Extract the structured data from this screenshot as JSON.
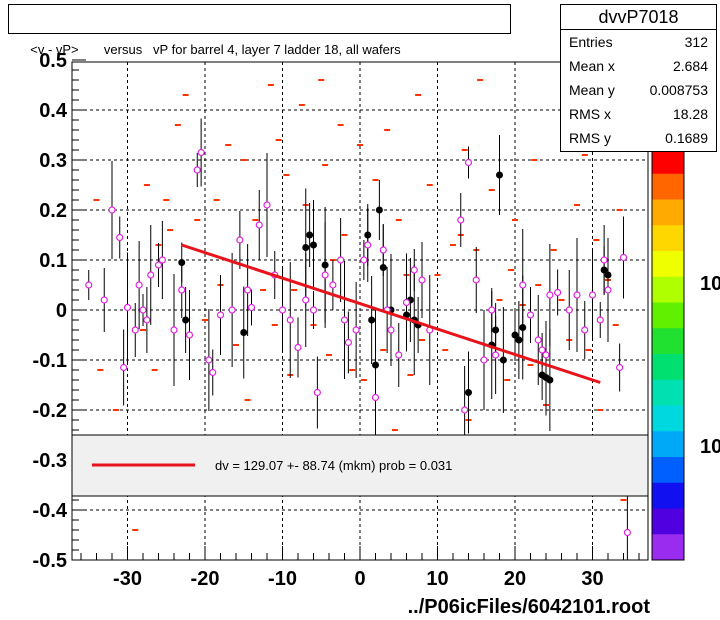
{
  "title": "<v - vP>       versus   vP for barrel 4, layer 7 ladder 18, all wafers",
  "stats": {
    "name": "dvvP7018",
    "rows": [
      {
        "key": "Entries",
        "value": "312"
      },
      {
        "key": "Mean x",
        "value": "2.684"
      },
      {
        "key": "Mean y",
        "value": "0.008753"
      },
      {
        "key": "RMS x",
        "value": "18.28"
      },
      {
        "key": "RMS y",
        "value": "0.1689"
      }
    ]
  },
  "footer": "../P06icFiles/6042101.root",
  "colors": {
    "fit_line": "#e8141c",
    "profile_marker": "#e020e0",
    "black_marker": "#000000",
    "scatter": "#ff3300",
    "legend_bg": "#f0f0f0",
    "palette": [
      "#ff0000",
      "#ff6600",
      "#ffaa00",
      "#ffd700",
      "#f0ff00",
      "#b0ff00",
      "#60f000",
      "#20e030",
      "#00e070",
      "#00e0b0",
      "#00d8e0",
      "#00a8f8",
      "#0060ff",
      "#1010f0",
      "#5000e0",
      "#9a2cf0"
    ]
  },
  "palette_labels": [
    "10",
    "10"
  ],
  "chart_data": {
    "type": "scatter",
    "x_ticks": [
      "-30",
      "-20",
      "-10",
      "0",
      "10",
      "20",
      "30"
    ],
    "y_ticks": [
      "-0.5",
      "-0.4",
      "-0.3",
      "-0.2",
      "-0.1",
      "0",
      "0.1",
      "0.2",
      "0.3",
      "0.4",
      "0.5"
    ],
    "xlim": [
      -37,
      37
    ],
    "ylim": [
      -0.5,
      0.5
    ],
    "grid": true,
    "fit": {
      "x": [
        -23,
        31
      ],
      "y": [
        0.13,
        -0.145
      ],
      "label": "dv =  129.07 +- 88.74 (mkm) prob = 0.031"
    },
    "profile_points": [
      [
        -35,
        0.05
      ],
      [
        -33,
        0.02
      ],
      [
        -32,
        0.2
      ],
      [
        -31,
        0.145
      ],
      [
        -30.5,
        -0.115
      ],
      [
        -30,
        0.005
      ],
      [
        -29,
        -0.04
      ],
      [
        -28.5,
        0.05
      ],
      [
        -28,
        0.0
      ],
      [
        -27.5,
        -0.02
      ],
      [
        -27,
        0.07
      ],
      [
        -26,
        0.09
      ],
      [
        -25.5,
        0.1
      ],
      [
        -24,
        -0.04
      ],
      [
        -23,
        0.04
      ],
      [
        -22,
        -0.05
      ],
      [
        -21,
        0.28
      ],
      [
        -20.5,
        0.315
      ],
      [
        -19.5,
        -0.1
      ],
      [
        -19,
        -0.125
      ],
      [
        -18,
        -0.01
      ],
      [
        -16.5,
        0.0
      ],
      [
        -15.5,
        0.14
      ],
      [
        -14.5,
        0.04
      ],
      [
        -14,
        0.005
      ],
      [
        -13,
        0.17
      ],
      [
        -12,
        0.21
      ],
      [
        -11,
        0.07
      ],
      [
        -10,
        0.0
      ],
      [
        -9,
        -0.02
      ],
      [
        -8,
        -0.075
      ],
      [
        -7,
        0.02
      ],
      [
        -6,
        0.0
      ],
      [
        -5.5,
        -0.165
      ],
      [
        -4.5,
        0.07
      ],
      [
        -3.5,
        0.05
      ],
      [
        -2.5,
        0.1
      ],
      [
        -2,
        -0.02
      ],
      [
        -1.5,
        -0.065
      ],
      [
        -0.5,
        -0.04
      ],
      [
        0.5,
        0.1
      ],
      [
        1,
        0.13
      ],
      [
        2,
        -0.175
      ],
      [
        3,
        0.12
      ],
      [
        3.5,
        0.0
      ],
      [
        4,
        -0.04
      ],
      [
        5,
        -0.09
      ],
      [
        6,
        0.015
      ],
      [
        7,
        0.08
      ],
      [
        8,
        0.06
      ],
      [
        9,
        -0.04
      ],
      [
        13,
        0.18
      ],
      [
        13.5,
        -0.2
      ],
      [
        14,
        0.295
      ],
      [
        15,
        0.06
      ],
      [
        16,
        -0.1
      ],
      [
        17,
        0.0
      ],
      [
        17.5,
        -0.09
      ],
      [
        21,
        0.05
      ],
      [
        22,
        -0.01
      ],
      [
        23,
        -0.06
      ],
      [
        23.5,
        -0.08
      ],
      [
        24,
        -0.09
      ],
      [
        24.5,
        0.03
      ],
      [
        25.5,
        0.035
      ],
      [
        27,
        0.0
      ],
      [
        28,
        0.03
      ],
      [
        29,
        -0.04
      ],
      [
        30,
        0.03
      ],
      [
        31,
        -0.02
      ],
      [
        31.5,
        0.1
      ],
      [
        32,
        0.04
      ],
      [
        33.5,
        -0.115
      ],
      [
        34,
        0.105
      ],
      [
        34.5,
        -0.445
      ]
    ],
    "black_points": [
      [
        -23,
        0.095
      ],
      [
        -22.5,
        -0.02
      ],
      [
        -15,
        -0.045
      ],
      [
        -7,
        0.125
      ],
      [
        -6.5,
        0.15
      ],
      [
        -6,
        0.13
      ],
      [
        -4.5,
        0.09
      ],
      [
        1,
        0.15
      ],
      [
        1.5,
        -0.02
      ],
      [
        2,
        -0.11
      ],
      [
        2.5,
        0.2
      ],
      [
        3,
        0.085
      ],
      [
        4,
        0.0
      ],
      [
        6,
        -0.01
      ],
      [
        6.5,
        0.02
      ],
      [
        7,
        -0.02
      ],
      [
        7.5,
        -0.03
      ],
      [
        14,
        -0.165
      ],
      [
        17,
        -0.07
      ],
      [
        17.5,
        -0.04
      ],
      [
        18,
        0.27
      ],
      [
        18.5,
        -0.1
      ],
      [
        20,
        -0.05
      ],
      [
        20.5,
        -0.06
      ],
      [
        21,
        -0.035
      ],
      [
        23.5,
        -0.13
      ],
      [
        24,
        -0.135
      ],
      [
        24.5,
        -0.14
      ],
      [
        31.5,
        0.08
      ],
      [
        32,
        0.07
      ]
    ],
    "scatter_points": [
      [
        -34,
        0.22
      ],
      [
        -33.5,
        -0.12
      ],
      [
        -31.5,
        -0.2
      ],
      [
        -29,
        -0.44
      ],
      [
        -28,
        -0.04
      ],
      [
        -27.5,
        0.25
      ],
      [
        -26.5,
        -0.12
      ],
      [
        -26,
        0.13
      ],
      [
        -25,
        0.22
      ],
      [
        -24.5,
        0.16
      ],
      [
        -23.5,
        0.37
      ],
      [
        -22.5,
        0.43
      ],
      [
        -21,
        0.18
      ],
      [
        -20,
        -0.02
      ],
      [
        -18.5,
        0.22
      ],
      [
        -18,
        0.05
      ],
      [
        -17,
        0.33
      ],
      [
        -16,
        -0.07
      ],
      [
        -15,
        0.3
      ],
      [
        -14.5,
        -0.18
      ],
      [
        -13.5,
        0.18
      ],
      [
        -12.5,
        0.04
      ],
      [
        -11.5,
        0.45
      ],
      [
        -11,
        -0.03
      ],
      [
        -10.5,
        0.34
      ],
      [
        -9.5,
        0.27
      ],
      [
        -9,
        -0.13
      ],
      [
        -8.5,
        0.04
      ],
      [
        -7.5,
        0.41
      ],
      [
        -7,
        0.21
      ],
      [
        -6,
        -0.03
      ],
      [
        -5,
        0.46
      ],
      [
        -4.5,
        0.29
      ],
      [
        -4,
        -0.09
      ],
      [
        -3.5,
        0.1
      ],
      [
        -2.5,
        0.37
      ],
      [
        -2,
        0.15
      ],
      [
        -1,
        -0.12
      ],
      [
        0,
        0.33
      ],
      [
        0.5,
        -0.14
      ],
      [
        1.5,
        -0.5
      ],
      [
        2,
        0.26
      ],
      [
        3,
        -0.08
      ],
      [
        3.5,
        0.36
      ],
      [
        4.5,
        -0.24
      ],
      [
        5,
        0.18
      ],
      [
        6,
        0.07
      ],
      [
        6.5,
        -0.13
      ],
      [
        7.5,
        0.43
      ],
      [
        8,
        -0.06
      ],
      [
        9,
        0.25
      ],
      [
        10,
        0.07
      ],
      [
        11,
        -0.08
      ],
      [
        12,
        0.13
      ],
      [
        13,
        0.15
      ],
      [
        13.5,
        0.32
      ],
      [
        14,
        -0.22
      ],
      [
        15,
        0.12
      ],
      [
        15.5,
        0.46
      ],
      [
        16,
        -0.1
      ],
      [
        17,
        0.24
      ],
      [
        18,
        0.02
      ],
      [
        19,
        -0.14
      ],
      [
        19.5,
        0.08
      ],
      [
        20,
        0.18
      ],
      [
        21,
        0.01
      ],
      [
        22,
        -0.11
      ],
      [
        22.5,
        0.3
      ],
      [
        23,
        0.05
      ],
      [
        24,
        -0.19
      ],
      [
        25,
        0.12
      ],
      [
        26,
        0.02
      ],
      [
        27,
        -0.06
      ],
      [
        28,
        0.21
      ],
      [
        29,
        0.31
      ],
      [
        29.5,
        -0.08
      ],
      [
        30.5,
        0.14
      ],
      [
        31,
        -0.2
      ],
      [
        32,
        0.06
      ],
      [
        33,
        -0.03
      ],
      [
        33.5,
        0.2
      ],
      [
        34,
        -0.38
      ]
    ]
  }
}
